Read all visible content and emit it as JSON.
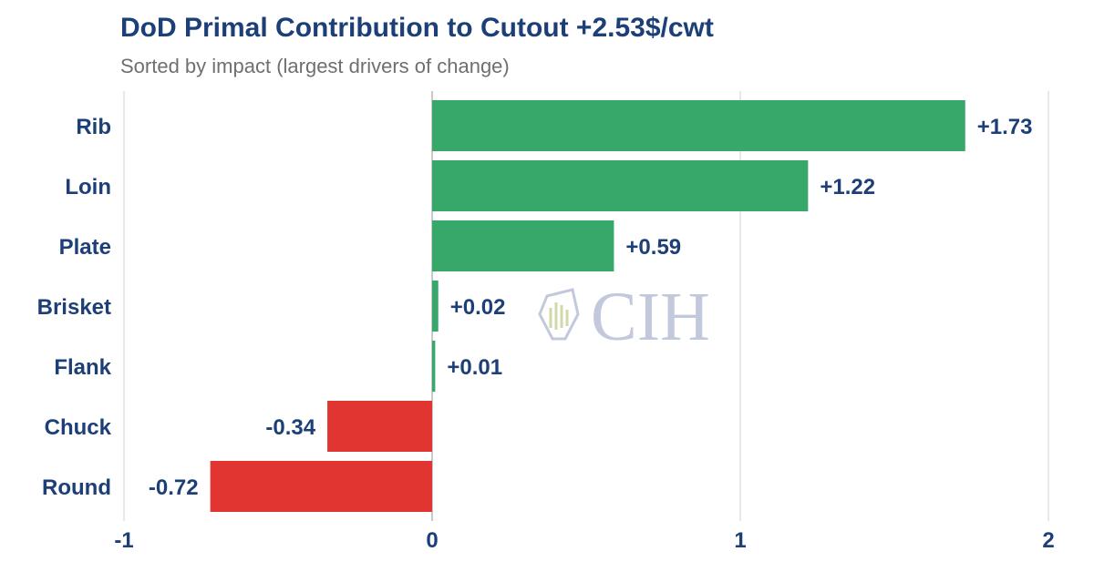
{
  "header": {
    "title": "DoD Primal Contribution to Cutout +2.53$/cwt",
    "subtitle": "Sorted by impact (largest drivers of change)"
  },
  "watermark": {
    "text": "CIH",
    "icon": "wheat-shield-icon"
  },
  "colors": {
    "positive": "#37a86a",
    "negative": "#e03530",
    "label": "#1d3f78",
    "grid": "#e2e2e2",
    "zero_line": "#b8b8b8",
    "watermark": "#c3c9dc"
  },
  "chart_data": {
    "type": "bar",
    "orientation": "horizontal",
    "title": "DoD Primal Contribution to Cutout +2.53$/cwt",
    "subtitle": "Sorted by impact (largest drivers of change)",
    "categories": [
      "Rib",
      "Loin",
      "Plate",
      "Brisket",
      "Flank",
      "Chuck",
      "Round"
    ],
    "values": [
      1.73,
      1.22,
      0.59,
      0.02,
      0.01,
      -0.34,
      -0.72
    ],
    "value_labels": [
      "+1.73",
      "+1.22",
      "+0.59",
      "+0.02",
      "+0.01",
      "-0.34",
      "-0.72"
    ],
    "xlim": [
      -1,
      2
    ],
    "xticks": [
      -1,
      0,
      1,
      2
    ],
    "xtick_labels": [
      "-1",
      "0",
      "1",
      "2"
    ],
    "grid": "vertical",
    "legend": "none"
  }
}
